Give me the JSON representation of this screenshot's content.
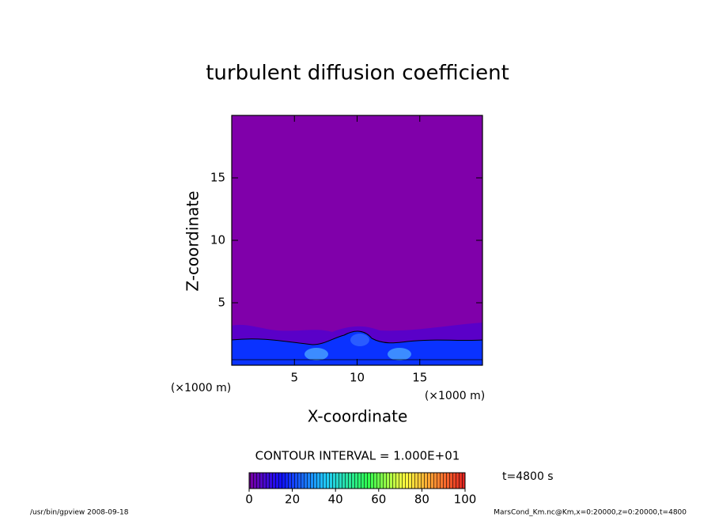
{
  "chart_data": {
    "type": "contour",
    "title": "turbulent diffusion coefficient",
    "x_label": "X-coordinate",
    "y_label": "Z-coordinate",
    "x_unit": "(×1000 m)",
    "y_unit": "(×1000 m)",
    "xlim": [
      0,
      20
    ],
    "ylim": [
      0,
      20
    ],
    "xticks": [
      5,
      10,
      15
    ],
    "yticks": [
      5,
      10,
      15
    ],
    "contour_interval": "CONTOUR INTERVAL = 1.000E+01",
    "time_label": "t=4800 s",
    "colorbar": {
      "lim": [
        0,
        100
      ],
      "ticks": [
        0,
        20,
        40,
        60,
        80,
        100
      ]
    },
    "footer_left": "/usr/bin/gpview  2008-09-18",
    "footer_right": "MarsCond_Km.nc@Km,x=0:20000,z=0:20000,t=4800"
  }
}
